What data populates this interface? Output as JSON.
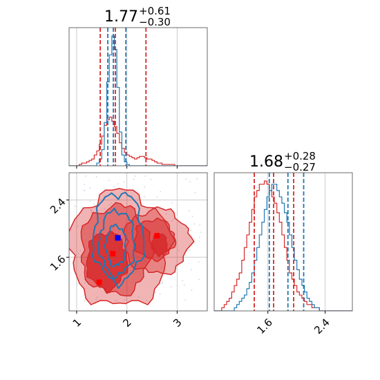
{
  "chart_data": {
    "type": "corner",
    "colors": {
      "primary": "#d62728",
      "secondary": "#1f77b4",
      "marker_primary": "#ff0000",
      "marker_secondary": "#0000ff",
      "grid": "#cccccc"
    },
    "panels": [
      {
        "kind": "hist1d",
        "parameter_index": 0,
        "title": {
          "main": "1.77",
          "plus": "+0.61",
          "minus": "−0.30"
        },
        "xlim": [
          0.85,
          3.6
        ],
        "x_ticks": [
          1,
          2,
          3
        ],
        "x_tick_labels_shown": false,
        "bins_start": 0.85,
        "bin_width": 0.05,
        "series": [
          {
            "color": "#d62728",
            "name": "",
            "counts": [
              0,
              0,
              0,
              0,
              1,
              2,
              2,
              3,
              4,
              5,
              8,
              11,
              16,
              22,
              30,
              34,
              36,
              33,
              29,
              24,
              17,
              13,
              10,
              8,
              7,
              6,
              5,
              6,
              7,
              7,
              6,
              5,
              5,
              4,
              3,
              2,
              2,
              1,
              1,
              1,
              1,
              1,
              0,
              0,
              0,
              0,
              0,
              0,
              0,
              0,
              0,
              0,
              0,
              0,
              0
            ]
          },
          {
            "color": "#1f77b4",
            "name": "",
            "counts": [
              0,
              0,
              0,
              0,
              0,
              0,
              0,
              0,
              0,
              0,
              0,
              2,
              5,
              12,
              32,
              62,
              82,
              96,
              86,
              58,
              25,
              8,
              3,
              1,
              0,
              0,
              0,
              0,
              0,
              0,
              0,
              0,
              0,
              0,
              0,
              0,
              0,
              0,
              0,
              0,
              0,
              0,
              0,
              0,
              0,
              0,
              0,
              0,
              0,
              0,
              0,
              0,
              0,
              0,
              0
            ]
          }
        ],
        "quantile_lines": [
          {
            "color": "#d62728",
            "x": [
              1.47,
              1.77,
              2.38
            ]
          },
          {
            "color": "#1f77b4",
            "x": [
              1.62,
              1.73,
              1.98
            ]
          }
        ]
      },
      {
        "kind": "contour2d",
        "x_parameter_index": 0,
        "y_parameter_index": 1,
        "xlim": [
          0.85,
          3.6
        ],
        "ylim": [
          0.85,
          2.78
        ],
        "x_ticks": [
          1,
          2,
          3
        ],
        "x_tick_labels": [
          "1",
          "2",
          "3"
        ],
        "y_ticks": [
          1.6,
          2.4
        ],
        "y_tick_labels": [
          "1.6",
          "2.4"
        ],
        "red_levels": [
          {
            "opacity": 0.35,
            "blobs": [
              {
                "cx": 1.85,
                "cy": 1.72,
                "rx": 1.0,
                "ry": 0.8
              },
              {
                "cx": 2.6,
                "cy": 1.82,
                "rx": 0.65,
                "ry": 0.45
              }
            ]
          },
          {
            "opacity": 0.5,
            "blobs": [
              {
                "cx": 1.78,
                "cy": 1.7,
                "rx": 0.7,
                "ry": 0.62
              },
              {
                "cx": 2.55,
                "cy": 1.85,
                "rx": 0.4,
                "ry": 0.28
              }
            ]
          },
          {
            "opacity": 0.8,
            "blobs": [
              {
                "cx": 1.6,
                "cy": 1.55,
                "rx": 0.4,
                "ry": 0.4
              },
              {
                "cx": 2.65,
                "cy": 1.78,
                "rx": 0.15,
                "ry": 0.15
              }
            ]
          }
        ],
        "blue_levels": [
          {
            "cx": 1.83,
            "cy": 1.88,
            "rx": 0.5,
            "ry": 0.62
          },
          {
            "cx": 1.8,
            "cy": 1.8,
            "rx": 0.35,
            "ry": 0.45
          },
          {
            "cx": 1.78,
            "cy": 1.76,
            "rx": 0.2,
            "ry": 0.28
          }
        ],
        "markers": [
          {
            "color": "#0000ff",
            "x": 1.82,
            "y": 1.87
          },
          {
            "color": "#ff0000",
            "x": 1.72,
            "y": 1.65
          },
          {
            "color": "#ff0000",
            "x": 1.45,
            "y": 1.25
          },
          {
            "color": "#ff0000",
            "x": 2.6,
            "y": 1.9
          }
        ]
      },
      {
        "kind": "hist1d",
        "parameter_index": 1,
        "title": {
          "main": "1.68",
          "plus": "+0.28",
          "minus": "−0.27"
        },
        "xlim": [
          0.85,
          2.78
        ],
        "x_ticks": [
          1.6,
          2.4
        ],
        "x_tick_labels": [
          "1.6",
          "2.4"
        ],
        "bins_start": 0.85,
        "bin_width": 0.035,
        "series": [
          {
            "color": "#d62728",
            "name": "",
            "counts": [
              0,
              0,
              0,
              1,
              2,
              3,
              4,
              6,
              8,
              10,
              12,
              16,
              20,
              24,
              28,
              32,
              36,
              38,
              40,
              40,
              41,
              40,
              38,
              36,
              34,
              31,
              28,
              24,
              20,
              16,
              12,
              10,
              8,
              6,
              5,
              4,
              3,
              2,
              2,
              1,
              1,
              1,
              0,
              0,
              0,
              0,
              0,
              0,
              0,
              0,
              0,
              0,
              0,
              0,
              0,
              0
            ]
          },
          {
            "color": "#1f77b4",
            "name": "",
            "counts": [
              0,
              0,
              0,
              0,
              0,
              0,
              0,
              0,
              1,
              2,
              3,
              4,
              5,
              7,
              9,
              12,
              16,
              20,
              24,
              28,
              32,
              36,
              38,
              40,
              40,
              38,
              36,
              34,
              31,
              28,
              24,
              20,
              16,
              13,
              10,
              8,
              6,
              4,
              3,
              2,
              1,
              1,
              0,
              0,
              0,
              0,
              0,
              0,
              0,
              0,
              0,
              0,
              0,
              0,
              0,
              0
            ]
          }
        ],
        "quantile_lines": [
          {
            "color": "#d62728",
            "x": [
              1.41,
              1.68,
              1.96
            ]
          },
          {
            "color": "#1f77b4",
            "x": [
              1.62,
              1.88,
              2.1
            ]
          }
        ]
      }
    ]
  }
}
